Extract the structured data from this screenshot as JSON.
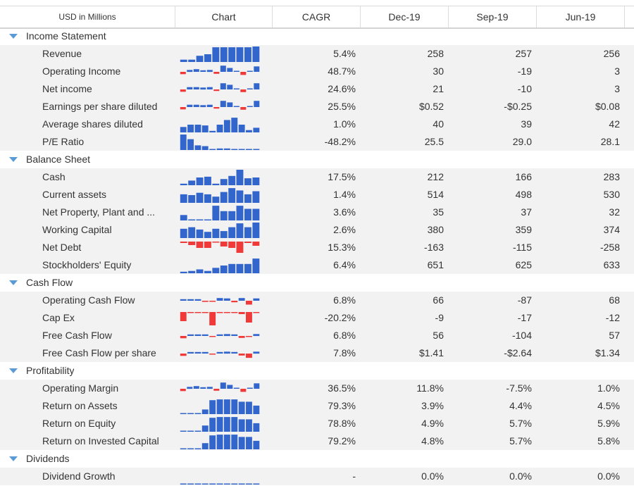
{
  "header": {
    "label_col": "USD in Millions",
    "chart_col": "Chart",
    "cagr_col": "CAGR",
    "periods": [
      "Dec-19",
      "Sep-19",
      "Jun-19"
    ]
  },
  "colors": {
    "positive": "#3366cc",
    "negative": "#f03a3a",
    "caret": "#5b9bd5"
  },
  "sections": [
    {
      "title": "Income Statement",
      "rows": [
        {
          "name": "Revenue",
          "cagr": "5.4%",
          "values": [
            "258",
            "257",
            "256"
          ],
          "spark": [
            0.15,
            0.15,
            0.4,
            0.5,
            0.95,
            0.95,
            0.95,
            0.95,
            0.95,
            1.0
          ]
        },
        {
          "name": "Operating Income",
          "cagr": "48.7%",
          "values": [
            "30",
            "-19",
            "3"
          ],
          "spark": [
            -0.3,
            0.25,
            0.35,
            0.2,
            0.25,
            -0.25,
            0.8,
            0.5,
            0.1,
            -0.4,
            0.1,
            0.7
          ]
        },
        {
          "name": "Net income",
          "cagr": "24.6%",
          "values": [
            "21",
            "-10",
            "3"
          ],
          "spark": [
            -0.3,
            0.3,
            0.3,
            0.25,
            0.3,
            -0.2,
            0.8,
            0.6,
            0.1,
            -0.35,
            0.1,
            0.8
          ]
        },
        {
          "name": "Earnings per share diluted",
          "cagr": "25.5%",
          "values": [
            "$0.52",
            "-$0.25",
            "$0.08"
          ],
          "spark": [
            -0.3,
            0.3,
            0.3,
            0.25,
            0.3,
            -0.2,
            0.8,
            0.6,
            0.1,
            -0.35,
            0.1,
            0.8
          ]
        },
        {
          "name": "Average shares diluted",
          "cagr": "1.0%",
          "values": [
            "40",
            "39",
            "42"
          ],
          "spark": [
            0.35,
            0.5,
            0.5,
            0.45,
            0.1,
            0.5,
            0.8,
            0.95,
            0.5,
            0.15,
            0.3
          ]
        },
        {
          "name": "P/E Ratio",
          "cagr": "-48.2%",
          "values": [
            "25.5",
            "29.0",
            "28.1"
          ],
          "spark": [
            1.0,
            0.7,
            0.3,
            0.25,
            0.05,
            0.1,
            0.1,
            0.05,
            0.05,
            0.05,
            0.05
          ]
        }
      ]
    },
    {
      "title": "Balance Sheet",
      "rows": [
        {
          "name": "Cash",
          "cagr": "17.5%",
          "values": [
            "212",
            "166",
            "283"
          ],
          "spark": [
            0.1,
            0.3,
            0.5,
            0.55,
            0.1,
            0.4,
            0.6,
            1.0,
            0.45,
            0.5
          ]
        },
        {
          "name": "Current assets",
          "cagr": "1.4%",
          "values": [
            "514",
            "498",
            "530"
          ],
          "spark": [
            0.55,
            0.5,
            0.65,
            0.55,
            0.4,
            0.7,
            0.95,
            0.8,
            0.55,
            0.75
          ]
        },
        {
          "name": "Net Property, Plant and ...",
          "cagr": "3.6%",
          "values": [
            "35",
            "37",
            "32"
          ],
          "spark": [
            0.35,
            0.05,
            0.05,
            0.05,
            0.95,
            0.6,
            0.6,
            0.95,
            0.75,
            0.75
          ]
        },
        {
          "name": "Working Capital",
          "cagr": "2.6%",
          "values": [
            "380",
            "359",
            "374"
          ],
          "spark": [
            0.6,
            0.7,
            0.55,
            0.4,
            0.6,
            0.45,
            0.7,
            0.95,
            0.7,
            1.0
          ]
        },
        {
          "name": "Net Debt",
          "cagr": "15.3%",
          "values": [
            "-163",
            "-115",
            "-258"
          ],
          "spark": [
            -0.1,
            -0.25,
            -0.45,
            -0.45,
            -0.05,
            -0.35,
            -0.45,
            -0.8,
            -0.1,
            -0.3
          ]
        },
        {
          "name": "Stockholders' Equity",
          "cagr": "6.4%",
          "values": [
            "651",
            "625",
            "633"
          ],
          "spark": [
            0.1,
            0.15,
            0.25,
            0.15,
            0.35,
            0.5,
            0.6,
            0.6,
            0.6,
            0.95
          ]
        }
      ]
    },
    {
      "title": "Cash Flow",
      "rows": [
        {
          "name": "Operating Cash Flow",
          "cagr": "6.8%",
          "values": [
            "66",
            "-87",
            "68"
          ],
          "spark": [
            0.2,
            0.2,
            0.2,
            -0.15,
            -0.1,
            0.35,
            0.3,
            -0.2,
            0.35,
            -0.5,
            0.3
          ]
        },
        {
          "name": "Cap Ex",
          "cagr": "-20.2%",
          "values": [
            "-9",
            "-17",
            "-12"
          ],
          "spark": [
            -0.65,
            -0.05,
            -0.05,
            -0.05,
            -0.95,
            -0.05,
            -0.05,
            -0.05,
            -0.15,
            -0.75,
            -0.05
          ]
        },
        {
          "name": "Free Cash Flow",
          "cagr": "6.8%",
          "values": [
            "56",
            "-104",
            "57"
          ],
          "spark": [
            -0.3,
            0.2,
            0.2,
            0.2,
            -0.1,
            0.2,
            0.25,
            0.2,
            -0.25,
            -0.1,
            0.25
          ]
        },
        {
          "name": "Free Cash Flow per share",
          "cagr": "7.8%",
          "values": [
            "$1.41",
            "-$2.64",
            "$1.34"
          ],
          "spark": [
            -0.3,
            0.2,
            0.2,
            0.2,
            -0.1,
            0.2,
            0.25,
            0.2,
            -0.25,
            -0.55,
            0.25
          ]
        }
      ]
    },
    {
      "title": "Profitability",
      "rows": [
        {
          "name": "Operating Margin",
          "cagr": "36.5%",
          "values": [
            "11.8%",
            "-7.5%",
            "1.0%"
          ],
          "spark": [
            -0.3,
            0.25,
            0.35,
            0.2,
            0.25,
            -0.25,
            0.8,
            0.5,
            0.1,
            -0.4,
            0.1,
            0.7
          ]
        },
        {
          "name": "Return on Assets",
          "cagr": "79.3%",
          "values": [
            "3.9%",
            "4.4%",
            "4.5%"
          ],
          "spark": [
            0.05,
            0.05,
            0.05,
            0.3,
            0.9,
            0.95,
            0.95,
            0.95,
            0.8,
            0.8,
            0.55
          ]
        },
        {
          "name": "Return on Equity",
          "cagr": "78.8%",
          "values": [
            "4.9%",
            "5.7%",
            "5.9%"
          ],
          "spark": [
            0.05,
            0.05,
            0.05,
            0.4,
            0.9,
            0.95,
            0.95,
            0.95,
            0.8,
            0.8,
            0.55
          ]
        },
        {
          "name": "Return on Invested Capital",
          "cagr": "79.2%",
          "values": [
            "4.8%",
            "5.7%",
            "5.8%"
          ],
          "spark": [
            0.05,
            0.05,
            0.05,
            0.4,
            0.9,
            0.95,
            0.95,
            0.95,
            0.8,
            0.8,
            0.55
          ]
        }
      ]
    },
    {
      "title": "Dividends",
      "rows": [
        {
          "name": "Dividend Growth",
          "cagr": "-",
          "values": [
            "0.0%",
            "0.0%",
            "0.0%"
          ],
          "spark": [
            0.05,
            0.05,
            0.05,
            0.05,
            0.05,
            0.05,
            0.05,
            0.05,
            0.05,
            0.05,
            0.05
          ]
        }
      ]
    }
  ]
}
